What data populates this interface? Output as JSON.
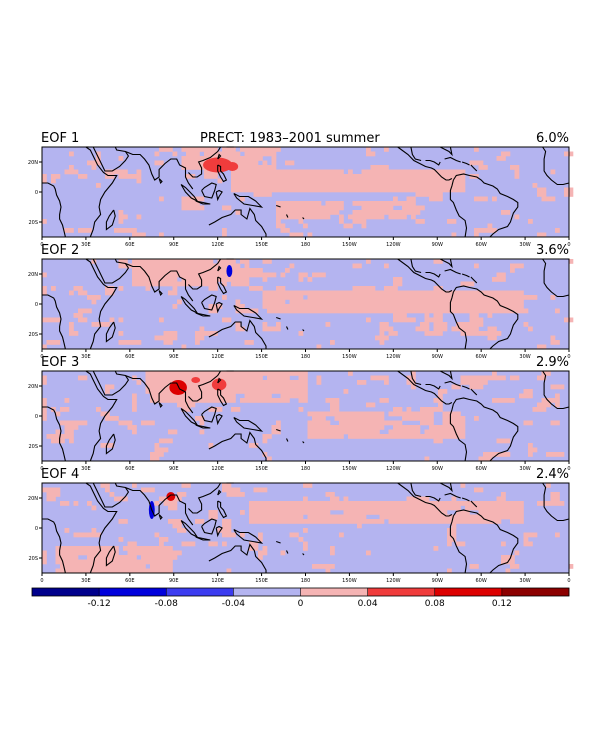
{
  "figure": {
    "title": "PRECT: 1983–2001 summer",
    "colors": {
      "dark_blue": "#00008c",
      "blue": "#0000dc",
      "mid_blue": "#3c3cf0",
      "light_blue": "#b4b4f0",
      "light_red": "#f5b4b4",
      "mid_red": "#f03c3c",
      "red": "#dc0000",
      "dark_red": "#8c0000"
    },
    "panels": [
      {
        "label": "EOF 1",
        "variance": "6.0%"
      },
      {
        "label": "EOF 2",
        "variance": "3.6%"
      },
      {
        "label": "EOF 3",
        "variance": "2.9%"
      },
      {
        "label": "EOF 4",
        "variance": "2.4%"
      }
    ],
    "lon_ticks": [
      "0",
      "30E",
      "60E",
      "90E",
      "120E",
      "150E",
      "180",
      "150W",
      "120W",
      "90W",
      "60W",
      "30W",
      "0"
    ],
    "lat_ticks": [
      "20N",
      "0",
      "20S"
    ],
    "colorbar": {
      "labels": [
        "-0.12",
        "-0.08",
        "-0.04",
        "0",
        "0.04",
        "0.08",
        "0.12"
      ]
    }
  }
}
